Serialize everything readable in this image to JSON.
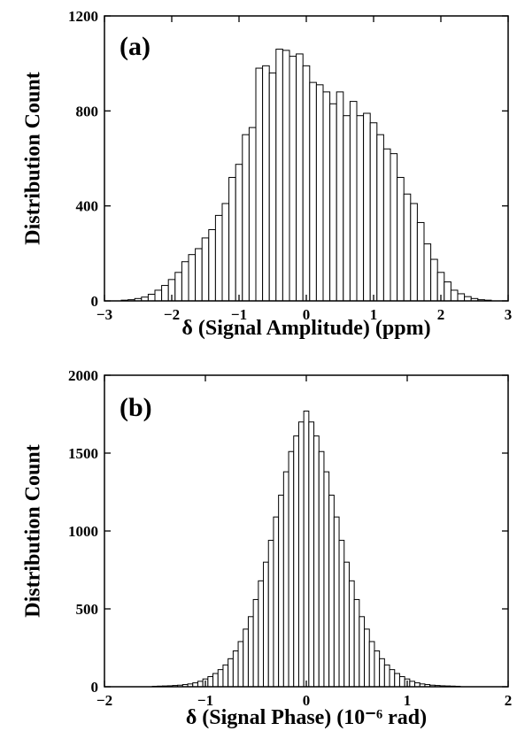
{
  "chart_data": [
    {
      "type": "bar",
      "panel_label": "(a)",
      "xlabel": "δ (Signal Amplitude)   (ppm)",
      "ylabel": "Distribution  Count",
      "xlim": [
        -3,
        3
      ],
      "ylim": [
        0,
        1200
      ],
      "xticks": [
        -3,
        -2,
        -1,
        0,
        1,
        2,
        3
      ],
      "xtick_labels": [
        "−3",
        "−2",
        "−1",
        "0",
        "1",
        "2",
        "3"
      ],
      "yticks": [
        0,
        400,
        800,
        1200
      ],
      "ytick_labels": [
        "0",
        "400",
        "800",
        "1200"
      ],
      "bin_width": 0.1,
      "x": [
        -2.7,
        -2.6,
        -2.5,
        -2.4,
        -2.3,
        -2.2,
        -2.1,
        -2.0,
        -1.9,
        -1.8,
        -1.7,
        -1.6,
        -1.5,
        -1.4,
        -1.3,
        -1.2,
        -1.1,
        -1.0,
        -0.9,
        -0.8,
        -0.7,
        -0.6,
        -0.5,
        -0.4,
        -0.3,
        -0.2,
        -0.1,
        0.0,
        0.1,
        0.2,
        0.3,
        0.4,
        0.5,
        0.6,
        0.7,
        0.8,
        0.9,
        1.0,
        1.1,
        1.2,
        1.3,
        1.4,
        1.5,
        1.6,
        1.7,
        1.8,
        1.9,
        2.0,
        2.1,
        2.2,
        2.3,
        2.4,
        2.5,
        2.6,
        2.7
      ],
      "values": [
        3,
        5,
        10,
        16,
        28,
        45,
        65,
        90,
        120,
        165,
        195,
        220,
        265,
        300,
        360,
        410,
        520,
        575,
        700,
        730,
        980,
        990,
        960,
        1060,
        1055,
        1030,
        1040,
        990,
        920,
        910,
        880,
        830,
        880,
        780,
        840,
        780,
        790,
        750,
        700,
        640,
        620,
        520,
        450,
        410,
        330,
        240,
        175,
        120,
        80,
        45,
        30,
        18,
        10,
        5,
        3
      ],
      "grid": false,
      "legend": "none"
    },
    {
      "type": "bar",
      "panel_label": "(b)",
      "xlabel": "δ (Signal Phase)   (10⁻⁶ rad)",
      "ylabel": "Distribution  Count",
      "xlim": [
        -2,
        2
      ],
      "ylim": [
        0,
        2000
      ],
      "xticks": [
        -2,
        -1,
        0,
        1,
        2
      ],
      "xtick_labels": [
        "−2",
        "−1",
        "0",
        "1",
        "2"
      ],
      "yticks": [
        0,
        500,
        1000,
        1500,
        2000
      ],
      "ytick_labels": [
        "0",
        "500",
        "1000",
        "1500",
        "2000"
      ],
      "bin_width": 0.05,
      "x": [
        -1.5,
        -1.45,
        -1.4,
        -1.35,
        -1.3,
        -1.25,
        -1.2,
        -1.15,
        -1.1,
        -1.05,
        -1.0,
        -0.95,
        -0.9,
        -0.85,
        -0.8,
        -0.75,
        -0.7,
        -0.65,
        -0.6,
        -0.55,
        -0.5,
        -0.45,
        -0.4,
        -0.35,
        -0.3,
        -0.25,
        -0.2,
        -0.15,
        -0.1,
        -0.05,
        0.0,
        0.05,
        0.1,
        0.15,
        0.2,
        0.25,
        0.3,
        0.35,
        0.4,
        0.45,
        0.5,
        0.55,
        0.6,
        0.65,
        0.7,
        0.75,
        0.8,
        0.85,
        0.9,
        0.95,
        1.0,
        1.05,
        1.1,
        1.15,
        1.2,
        1.25,
        1.3,
        1.35,
        1.4,
        1.45,
        1.5
      ],
      "values": [
        3,
        4,
        5,
        6,
        8,
        10,
        14,
        18,
        25,
        35,
        50,
        65,
        85,
        110,
        140,
        180,
        230,
        290,
        370,
        450,
        560,
        680,
        800,
        940,
        1090,
        1230,
        1380,
        1510,
        1610,
        1700,
        1770,
        1700,
        1610,
        1510,
        1380,
        1230,
        1090,
        940,
        800,
        680,
        560,
        450,
        370,
        290,
        230,
        180,
        140,
        110,
        85,
        65,
        50,
        35,
        25,
        18,
        14,
        10,
        8,
        6,
        5,
        4,
        3
      ],
      "grid": false,
      "legend": "none"
    }
  ]
}
